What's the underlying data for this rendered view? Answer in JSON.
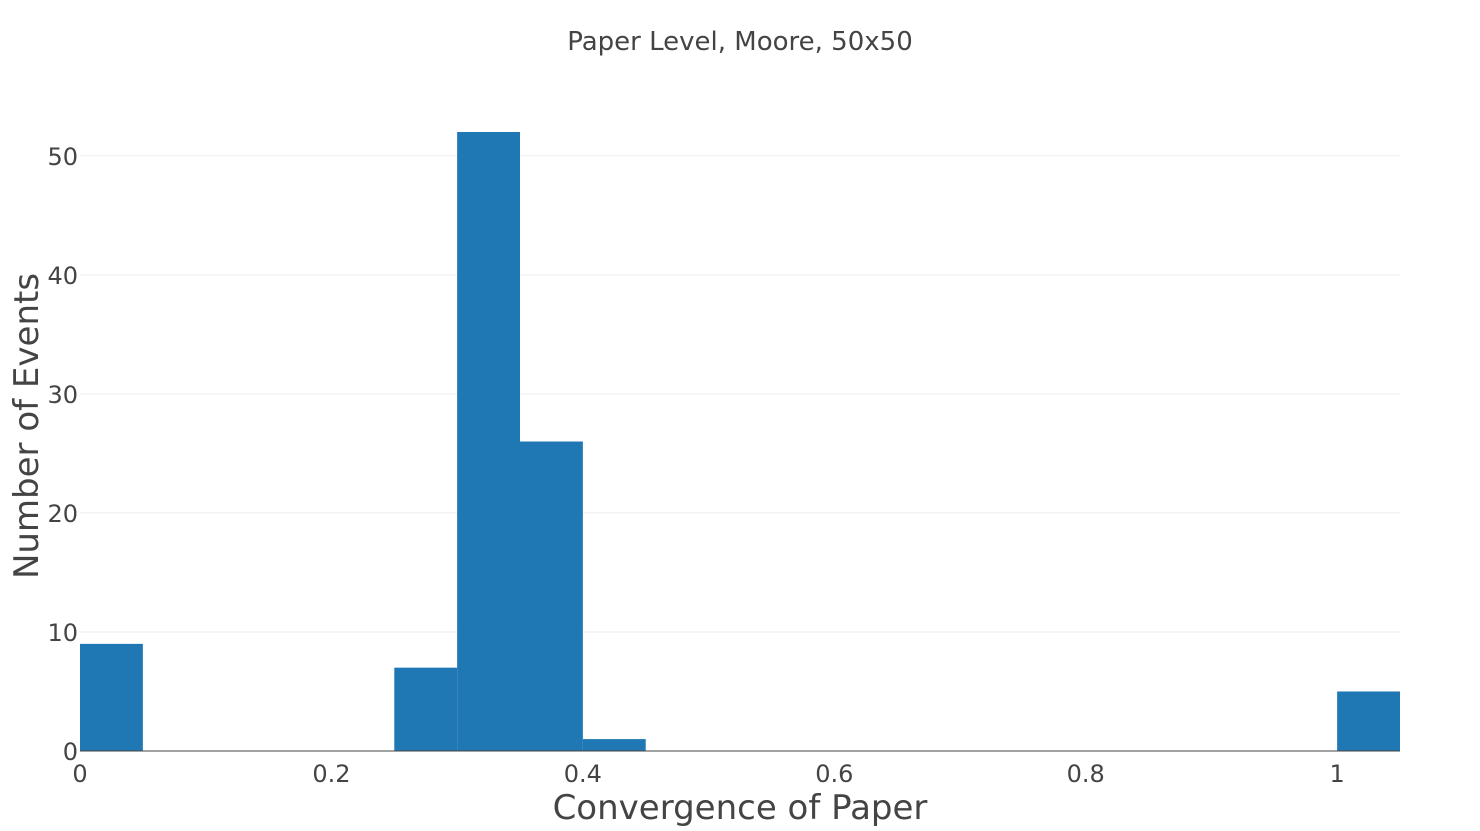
{
  "chart_data": {
    "type": "bar",
    "subtype": "histogram",
    "title": "Paper Level, Moore, 50x50",
    "xlabel": "Convergence of Paper",
    "ylabel": "Number of Events",
    "bins": [
      {
        "start": 0.0,
        "end": 0.05,
        "value": 9
      },
      {
        "start": 0.25,
        "end": 0.3,
        "value": 7
      },
      {
        "start": 0.3,
        "end": 0.35,
        "value": 52
      },
      {
        "start": 0.35,
        "end": 0.4,
        "value": 26
      },
      {
        "start": 0.4,
        "end": 0.45,
        "value": 1
      },
      {
        "start": 1.0,
        "end": 1.05,
        "value": 5
      }
    ],
    "xlim": [
      0,
      1.05
    ],
    "ylim": [
      0,
      52
    ],
    "x_ticks": [
      "0",
      "0.2",
      "0.4",
      "0.6",
      "0.8",
      "1"
    ],
    "x_tick_values": [
      0,
      0.2,
      0.4,
      0.6,
      0.8,
      1
    ],
    "y_ticks": [
      "0",
      "10",
      "20",
      "30",
      "40",
      "50"
    ],
    "y_tick_values": [
      0,
      10,
      20,
      30,
      40,
      50
    ],
    "grid": true,
    "bar_color": "#1f77b4"
  }
}
